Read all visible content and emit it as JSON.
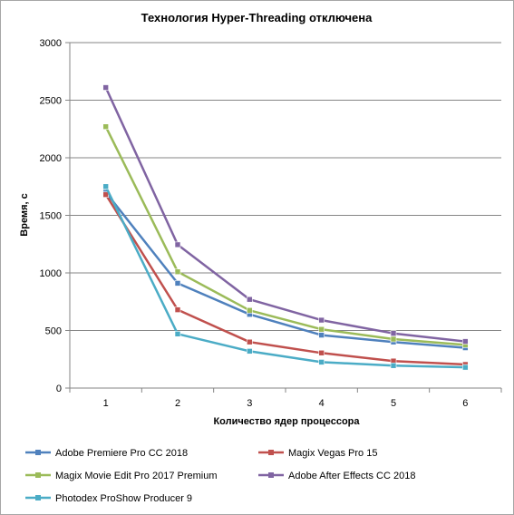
{
  "chart_data": {
    "type": "line",
    "title": "Технология Hyper-Threading отключена",
    "xlabel": "Количество  ядер процессора",
    "ylabel": "Время, с",
    "x": [
      1,
      2,
      3,
      4,
      5,
      6
    ],
    "ylim": [
      0,
      3000
    ],
    "yticks": [
      0,
      500,
      1000,
      1500,
      2000,
      2500,
      3000
    ],
    "grid": true,
    "legend_position": "bottom",
    "series": [
      {
        "name": "Adobe Premiere Pro CC 2018",
        "color": "#4f81bd",
        "values": [
          1700,
          910,
          640,
          460,
          400,
          350
        ]
      },
      {
        "name": "Magix Vegas Pro 15",
        "color": "#c0504d",
        "values": [
          1680,
          680,
          400,
          305,
          235,
          205
        ]
      },
      {
        "name": "Magix Movie Edit Pro 2017 Premium",
        "color": "#9bbb59",
        "values": [
          2270,
          1010,
          675,
          510,
          425,
          375
        ]
      },
      {
        "name": "Adobe After Effects CC 2018",
        "color": "#8064a2",
        "values": [
          2610,
          1245,
          770,
          590,
          475,
          405
        ]
      },
      {
        "name": "Photodex ProShow Producer 9",
        "color": "#4bacc6",
        "values": [
          1750,
          470,
          320,
          225,
          195,
          180
        ]
      }
    ]
  }
}
